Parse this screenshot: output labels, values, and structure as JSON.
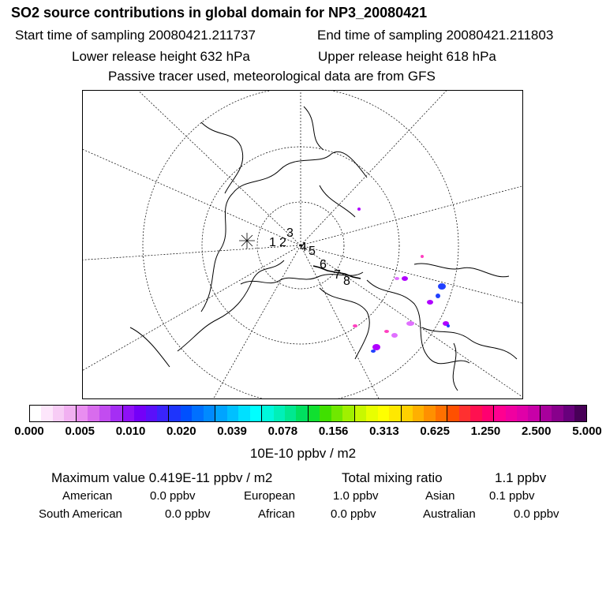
{
  "title": "SO2 source contributions in global domain for NP3_20080421",
  "header": {
    "start_time": "Start time of sampling 20080421.211737",
    "end_time": "End time of sampling 20080421.211803",
    "lower_release": "Lower release height  632 hPa",
    "upper_release": "Upper release height  618 hPa",
    "tracer_note": "Passive tracer used, meteorological data are from GFS"
  },
  "colorbar": {
    "colors": [
      "#ffffff",
      "#fde6fb",
      "#f7ccf5",
      "#f1b0f1",
      "#e98ef0",
      "#d86ced",
      "#c24cf0",
      "#a52ef4",
      "#8f10f6",
      "#7400f8",
      "#5a10fa",
      "#3a24fb",
      "#1e34fc",
      "#0050fe",
      "#0070ff",
      "#008aff",
      "#00a4ff",
      "#00c0ff",
      "#00e0ff",
      "#00ffff",
      "#00f8dc",
      "#00f0b8",
      "#00e890",
      "#00e060",
      "#10e030",
      "#40e000",
      "#70e800",
      "#a0f000",
      "#c8f800",
      "#e8ff00",
      "#ffff00",
      "#ffe800",
      "#ffd000",
      "#ffb000",
      "#ff9000",
      "#ff7000",
      "#ff5000",
      "#ff3030",
      "#ff1050",
      "#ff0070",
      "#ff0090",
      "#f000a0",
      "#e000a8",
      "#c800a8",
      "#a8009c",
      "#88008c",
      "#68007c",
      "#480058"
    ],
    "tick_labels": [
      "0.000",
      "0.005",
      "0.010",
      "0.020",
      "0.039",
      "0.078",
      "0.156",
      "0.313",
      "0.625",
      "1.250",
      "2.500",
      "5.000"
    ],
    "units": "10E-10 ppbv / m2"
  },
  "stats": {
    "max_value": "Maximum value  0.419E-11 ppbv / m2",
    "total_mixing": "Total mixing ratio",
    "total_value": "1.1 ppbv"
  },
  "regions": [
    {
      "name": "American",
      "value": "0.0 ppbv"
    },
    {
      "name": "European",
      "value": "1.0 ppbv"
    },
    {
      "name": "Asian",
      "value": "0.1 ppbv"
    },
    {
      "name": "South American",
      "value": "0.0 ppbv"
    },
    {
      "name": "African",
      "value": "0.0 ppbv"
    },
    {
      "name": "Australian",
      "value": "0.0 ppbv"
    }
  ],
  "map": {
    "track_labels": [
      "1",
      "2",
      "3",
      "4",
      "5",
      "6",
      "7",
      "8"
    ],
    "plume_colors": [
      "#b000ff",
      "#2040ff",
      "#ff40c0",
      "#e070ff"
    ]
  }
}
